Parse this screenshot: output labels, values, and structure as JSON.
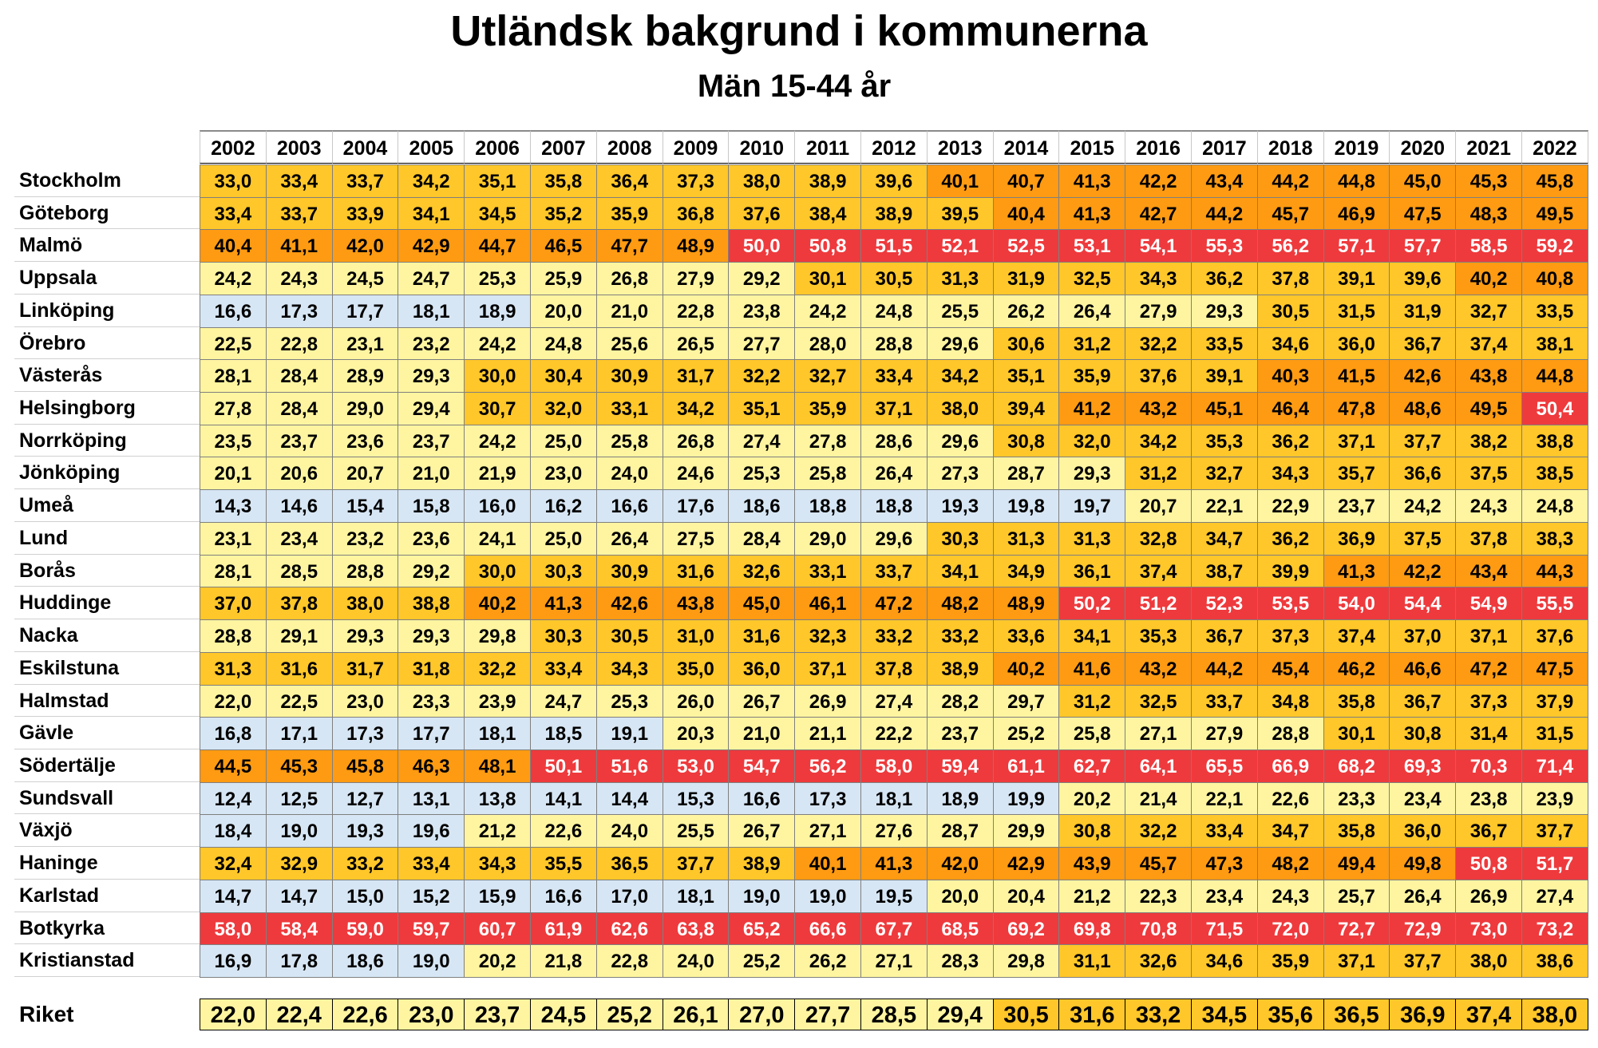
{
  "title": "Utländsk bakgrund i kommunerna",
  "subtitle": "Män 15-44 år",
  "colors": {
    "blue": "#d7e6f4",
    "light_yellow": "#fff5a0",
    "yellow": "#ffc729",
    "orange": "#ff9b12",
    "red": "#ee3a3d"
  },
  "chart_data": {
    "type": "table",
    "title": "Utländsk bakgrund i kommunerna",
    "subtitle": "Män 15-44 år",
    "columns": [
      "2002",
      "2003",
      "2004",
      "2005",
      "2006",
      "2007",
      "2008",
      "2009",
      "2010",
      "2011",
      "2012",
      "2013",
      "2014",
      "2015",
      "2016",
      "2017",
      "2018",
      "2019",
      "2020",
      "2021",
      "2022"
    ],
    "rows": [
      {
        "name": "Stockholm",
        "values": [
          "33,0",
          "33,4",
          "33,7",
          "34,2",
          "35,1",
          "35,8",
          "36,4",
          "37,3",
          "38,0",
          "38,9",
          "39,6",
          "40,1",
          "40,7",
          "41,3",
          "42,2",
          "43,4",
          "44,2",
          "44,8",
          "45,0",
          "45,3",
          "45,8"
        ]
      },
      {
        "name": "Göteborg",
        "values": [
          "33,4",
          "33,7",
          "33,9",
          "34,1",
          "34,5",
          "35,2",
          "35,9",
          "36,8",
          "37,6",
          "38,4",
          "38,9",
          "39,5",
          "40,4",
          "41,3",
          "42,7",
          "44,2",
          "45,7",
          "46,9",
          "47,5",
          "48,3",
          "49,5"
        ]
      },
      {
        "name": "Malmö",
        "values": [
          "40,4",
          "41,1",
          "42,0",
          "42,9",
          "44,7",
          "46,5",
          "47,7",
          "48,9",
          "50,0",
          "50,8",
          "51,5",
          "52,1",
          "52,5",
          "53,1",
          "54,1",
          "55,3",
          "56,2",
          "57,1",
          "57,7",
          "58,5",
          "59,2"
        ]
      },
      {
        "name": "Uppsala",
        "values": [
          "24,2",
          "24,3",
          "24,5",
          "24,7",
          "25,3",
          "25,9",
          "26,8",
          "27,9",
          "29,2",
          "30,1",
          "30,5",
          "31,3",
          "31,9",
          "32,5",
          "34,3",
          "36,2",
          "37,8",
          "39,1",
          "39,6",
          "40,2",
          "40,8"
        ]
      },
      {
        "name": "Linköping",
        "values": [
          "16,6",
          "17,3",
          "17,7",
          "18,1",
          "18,9",
          "20,0",
          "21,0",
          "22,8",
          "23,8",
          "24,2",
          "24,8",
          "25,5",
          "26,2",
          "26,4",
          "27,9",
          "29,3",
          "30,5",
          "31,5",
          "31,9",
          "32,7",
          "33,5"
        ]
      },
      {
        "name": "Örebro",
        "values": [
          "22,5",
          "22,8",
          "23,1",
          "23,2",
          "24,2",
          "24,8",
          "25,6",
          "26,5",
          "27,7",
          "28,0",
          "28,8",
          "29,6",
          "30,6",
          "31,2",
          "32,2",
          "33,5",
          "34,6",
          "36,0",
          "36,7",
          "37,4",
          "38,1"
        ]
      },
      {
        "name": "Västerås",
        "values": [
          "28,1",
          "28,4",
          "28,9",
          "29,3",
          "30,0",
          "30,4",
          "30,9",
          "31,7",
          "32,2",
          "32,7",
          "33,4",
          "34,2",
          "35,1",
          "35,9",
          "37,6",
          "39,1",
          "40,3",
          "41,5",
          "42,6",
          "43,8",
          "44,8"
        ]
      },
      {
        "name": "Helsingborg",
        "values": [
          "27,8",
          "28,4",
          "29,0",
          "29,4",
          "30,7",
          "32,0",
          "33,1",
          "34,2",
          "35,1",
          "35,9",
          "37,1",
          "38,0",
          "39,4",
          "41,2",
          "43,2",
          "45,1",
          "46,4",
          "47,8",
          "48,6",
          "49,5",
          "50,4"
        ]
      },
      {
        "name": "Norrköping",
        "values": [
          "23,5",
          "23,7",
          "23,6",
          "23,7",
          "24,2",
          "25,0",
          "25,8",
          "26,8",
          "27,4",
          "27,8",
          "28,6",
          "29,6",
          "30,8",
          "32,0",
          "34,2",
          "35,3",
          "36,2",
          "37,1",
          "37,7",
          "38,2",
          "38,8"
        ]
      },
      {
        "name": "Jönköping",
        "values": [
          "20,1",
          "20,6",
          "20,7",
          "21,0",
          "21,9",
          "23,0",
          "24,0",
          "24,6",
          "25,3",
          "25,8",
          "26,4",
          "27,3",
          "28,7",
          "29,3",
          "31,2",
          "32,7",
          "34,3",
          "35,7",
          "36,6",
          "37,5",
          "38,5"
        ]
      },
      {
        "name": "Umeå",
        "values": [
          "14,3",
          "14,6",
          "15,4",
          "15,8",
          "16,0",
          "16,2",
          "16,6",
          "17,6",
          "18,6",
          "18,8",
          "18,8",
          "19,3",
          "19,8",
          "19,7",
          "20,7",
          "22,1",
          "22,9",
          "23,7",
          "24,2",
          "24,3",
          "24,8"
        ]
      },
      {
        "name": "Lund",
        "values": [
          "23,1",
          "23,4",
          "23,2",
          "23,6",
          "24,1",
          "25,0",
          "26,4",
          "27,5",
          "28,4",
          "29,0",
          "29,6",
          "30,3",
          "31,3",
          "31,3",
          "32,8",
          "34,7",
          "36,2",
          "36,9",
          "37,5",
          "37,8",
          "38,3"
        ]
      },
      {
        "name": "Borås",
        "values": [
          "28,1",
          "28,5",
          "28,8",
          "29,2",
          "30,0",
          "30,3",
          "30,9",
          "31,6",
          "32,6",
          "33,1",
          "33,7",
          "34,1",
          "34,9",
          "36,1",
          "37,4",
          "38,7",
          "39,9",
          "41,3",
          "42,2",
          "43,4",
          "44,3"
        ]
      },
      {
        "name": "Huddinge",
        "values": [
          "37,0",
          "37,8",
          "38,0",
          "38,8",
          "40,2",
          "41,3",
          "42,6",
          "43,8",
          "45,0",
          "46,1",
          "47,2",
          "48,2",
          "48,9",
          "50,2",
          "51,2",
          "52,3",
          "53,5",
          "54,0",
          "54,4",
          "54,9",
          "55,5"
        ]
      },
      {
        "name": "Nacka",
        "values": [
          "28,8",
          "29,1",
          "29,3",
          "29,3",
          "29,8",
          "30,3",
          "30,5",
          "31,0",
          "31,6",
          "32,3",
          "33,2",
          "33,2",
          "33,6",
          "34,1",
          "35,3",
          "36,7",
          "37,3",
          "37,4",
          "37,0",
          "37,1",
          "37,6"
        ]
      },
      {
        "name": "Eskilstuna",
        "values": [
          "31,3",
          "31,6",
          "31,7",
          "31,8",
          "32,2",
          "33,4",
          "34,3",
          "35,0",
          "36,0",
          "37,1",
          "37,8",
          "38,9",
          "40,2",
          "41,6",
          "43,2",
          "44,2",
          "45,4",
          "46,2",
          "46,6",
          "47,2",
          "47,5"
        ]
      },
      {
        "name": "Halmstad",
        "values": [
          "22,0",
          "22,5",
          "23,0",
          "23,3",
          "23,9",
          "24,7",
          "25,3",
          "26,0",
          "26,7",
          "26,9",
          "27,4",
          "28,2",
          "29,7",
          "31,2",
          "32,5",
          "33,7",
          "34,8",
          "35,8",
          "36,7",
          "37,3",
          "37,9"
        ]
      },
      {
        "name": "Gävle",
        "values": [
          "16,8",
          "17,1",
          "17,3",
          "17,7",
          "18,1",
          "18,5",
          "19,1",
          "20,3",
          "21,0",
          "21,1",
          "22,2",
          "23,7",
          "25,2",
          "25,8",
          "27,1",
          "27,9",
          "28,8",
          "30,1",
          "30,8",
          "31,4",
          "31,5"
        ]
      },
      {
        "name": "Södertälje",
        "values": [
          "44,5",
          "45,3",
          "45,8",
          "46,3",
          "48,1",
          "50,1",
          "51,6",
          "53,0",
          "54,7",
          "56,2",
          "58,0",
          "59,4",
          "61,1",
          "62,7",
          "64,1",
          "65,5",
          "66,9",
          "68,2",
          "69,3",
          "70,3",
          "71,4"
        ]
      },
      {
        "name": "Sundsvall",
        "values": [
          "12,4",
          "12,5",
          "12,7",
          "13,1",
          "13,8",
          "14,1",
          "14,4",
          "15,3",
          "16,6",
          "17,3",
          "18,1",
          "18,9",
          "19,9",
          "20,2",
          "21,4",
          "22,1",
          "22,6",
          "23,3",
          "23,4",
          "23,8",
          "23,9"
        ]
      },
      {
        "name": "Växjö",
        "values": [
          "18,4",
          "19,0",
          "19,3",
          "19,6",
          "21,2",
          "22,6",
          "24,0",
          "25,5",
          "26,7",
          "27,1",
          "27,6",
          "28,7",
          "29,9",
          "30,8",
          "32,2",
          "33,4",
          "34,7",
          "35,8",
          "36,0",
          "36,7",
          "37,7"
        ]
      },
      {
        "name": "Haninge",
        "values": [
          "32,4",
          "32,9",
          "33,2",
          "33,4",
          "34,3",
          "35,5",
          "36,5",
          "37,7",
          "38,9",
          "40,1",
          "41,3",
          "42,0",
          "42,9",
          "43,9",
          "45,7",
          "47,3",
          "48,2",
          "49,4",
          "49,8",
          "50,8",
          "51,7"
        ]
      },
      {
        "name": "Karlstad",
        "values": [
          "14,7",
          "14,7",
          "15,0",
          "15,2",
          "15,9",
          "16,6",
          "17,0",
          "18,1",
          "19,0",
          "19,0",
          "19,5",
          "20,0",
          "20,4",
          "21,2",
          "22,3",
          "23,4",
          "24,3",
          "25,7",
          "26,4",
          "26,9",
          "27,4"
        ]
      },
      {
        "name": "Botkyrka",
        "values": [
          "58,0",
          "58,4",
          "59,0",
          "59,7",
          "60,7",
          "61,9",
          "62,6",
          "63,8",
          "65,2",
          "66,6",
          "67,7",
          "68,5",
          "69,2",
          "69,8",
          "70,8",
          "71,5",
          "72,0",
          "72,7",
          "72,9",
          "73,0",
          "73,2"
        ]
      },
      {
        "name": "Kristianstad",
        "values": [
          "16,9",
          "17,8",
          "18,6",
          "19,0",
          "20,2",
          "21,8",
          "22,8",
          "24,0",
          "25,2",
          "26,2",
          "27,1",
          "28,3",
          "29,8",
          "31,1",
          "32,6",
          "34,6",
          "35,9",
          "37,1",
          "37,7",
          "38,0",
          "38,6"
        ]
      }
    ],
    "total": {
      "name": "Riket",
      "values": [
        "22,0",
        "22,4",
        "22,6",
        "23,0",
        "23,7",
        "24,5",
        "25,2",
        "26,1",
        "27,0",
        "27,7",
        "28,5",
        "29,4",
        "30,5",
        "31,6",
        "33,2",
        "34,5",
        "35,6",
        "36,5",
        "36,9",
        "37,4",
        "38,0"
      ]
    }
  }
}
